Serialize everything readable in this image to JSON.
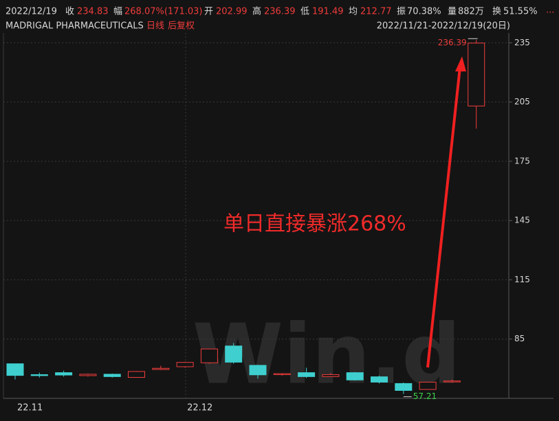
{
  "header": {
    "date": "2022/12/19",
    "close_label": "收",
    "close": "234.83",
    "change_label": "幅",
    "change": "268.07%(171.03)",
    "open_label": "开",
    "open": "202.99",
    "high_label": "高",
    "high": "236.39",
    "low_label": "低",
    "low": "191.49",
    "avg_label": "均",
    "avg": "212.77",
    "amp_label": "振",
    "amp": "70.38%",
    "vol_label": "量",
    "vol": "882万",
    "turn_label": "换",
    "turn": "51.55%",
    "more": "...",
    "name": "MADRIGAL PHARMACEUTICALS",
    "period": "日线",
    "adjust": "后复权",
    "range": "2022/11/21-2022/12/19(20日)"
  },
  "chart_data": {
    "type": "candlestick",
    "annotation": "单日直接暴涨268%",
    "watermark": "Win.d",
    "categories": [
      "22.11",
      null,
      null,
      null,
      null,
      null,
      null,
      "22.12",
      null,
      null,
      null,
      null,
      null,
      null,
      null,
      null,
      null,
      null,
      null,
      null
    ],
    "open": [
      72.5,
      67,
      68,
      66.5,
      67.2,
      65.6,
      69.6,
      71,
      73,
      81.5,
      71.7,
      67,
      68,
      66,
      68,
      65.9,
      62.5,
      59.5,
      63.3,
      202.99
    ],
    "high": [
      72.5,
      68,
      69,
      67.6,
      67.5,
      68.8,
      71.5,
      73.5,
      80.2,
      83,
      72,
      67.8,
      70.5,
      67.8,
      68.3,
      66.5,
      63,
      63.3,
      64.5,
      236.39
    ],
    "low": [
      64.5,
      65.5,
      66,
      66,
      65.5,
      65.5,
      69.3,
      70.5,
      72.5,
      72.5,
      65,
      66.5,
      65.3,
      65.8,
      64,
      62.5,
      57.21,
      59.3,
      63,
      191.49
    ],
    "close": [
      66.6,
      66.5,
      66.8,
      67.2,
      66,
      68.6,
      70.2,
      73.2,
      80,
      73.3,
      66.9,
      67.5,
      66,
      67,
      64.3,
      63.2,
      59,
      63.2,
      63.8,
      234.83
    ],
    "up_color": "#f03c3c",
    "down_color": "#3fcfcf",
    "ylim": [
      55,
      241
    ],
    "yticks": [
      85,
      115,
      145,
      175,
      205,
      235
    ],
    "grid": true
  }
}
